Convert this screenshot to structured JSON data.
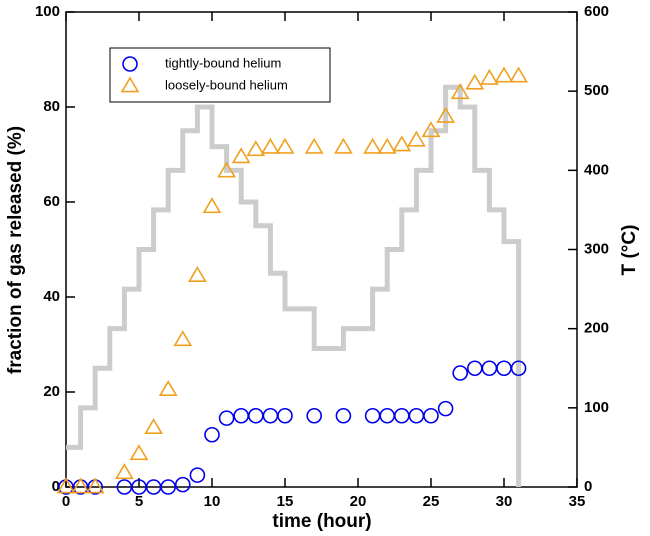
{
  "chart_data": {
    "type": "scatter",
    "xlabel": "time  (hour)",
    "ylabel": "fraction of gas released (%)",
    "y2label": "T  (°C)",
    "xlim": [
      0,
      35
    ],
    "xticks": [
      0,
      5,
      10,
      15,
      20,
      25,
      30,
      35
    ],
    "ylim": [
      0,
      100
    ],
    "yticks": [
      0,
      20,
      40,
      60,
      80,
      100
    ],
    "y2lim": [
      0,
      600
    ],
    "y2ticks": [
      0,
      100,
      200,
      300,
      400,
      500,
      600
    ],
    "legend": "upper left",
    "series": [
      {
        "color": "#cccccc",
        "axis": "y2",
        "kind": "line",
        "x": [
          0,
          1,
          1,
          2,
          2,
          3,
          3,
          4,
          4,
          5,
          5,
          6,
          6,
          7,
          7,
          8,
          8,
          9,
          9,
          10,
          10,
          11,
          11,
          12,
          12,
          13,
          13,
          14,
          14,
          15,
          15,
          17,
          17,
          19,
          19,
          21,
          21,
          22,
          22,
          23,
          23,
          24,
          24,
          25,
          25,
          26,
          26,
          27,
          27,
          28,
          28,
          29,
          29,
          30,
          30,
          31,
          31
        ],
        "values": [
          50,
          50,
          100,
          100,
          150,
          150,
          200,
          200,
          250,
          250,
          300,
          300,
          350,
          350,
          400,
          400,
          450,
          450,
          480,
          480,
          430,
          430,
          400,
          400,
          360,
          360,
          330,
          330,
          270,
          270,
          225,
          225,
          175,
          175,
          200,
          200,
          250,
          250,
          300,
          300,
          350,
          350,
          400,
          400,
          450,
          450,
          505,
          505,
          480,
          480,
          400,
          400,
          350,
          350,
          310,
          310,
          0
        ]
      },
      {
        "name": "tightly-bound helium",
        "color": "#0000ee",
        "marker": "circle",
        "x": [
          0,
          1,
          2,
          4,
          5,
          6,
          7,
          8,
          9,
          10,
          11,
          12,
          13,
          14,
          15,
          17,
          19,
          21,
          22,
          23,
          24,
          25,
          26,
          27,
          28,
          29,
          30,
          31
        ],
        "values": [
          0,
          0,
          0,
          0,
          0,
          0,
          0,
          0.5,
          2.5,
          11,
          14.5,
          15,
          15,
          15,
          15,
          15,
          15,
          15,
          15,
          15,
          15,
          15,
          16.5,
          24,
          25,
          25,
          25,
          25
        ]
      },
      {
        "name": "loosely-bound helium",
        "color": "#f0a020",
        "marker": "triangle",
        "x": [
          0,
          1,
          2,
          4,
          5,
          6,
          7,
          8,
          9,
          10,
          11,
          12,
          13,
          14,
          15,
          17,
          19,
          21,
          22,
          23,
          24,
          25,
          26,
          27,
          28,
          29,
          30,
          31
        ],
        "values": [
          0,
          0,
          0,
          3,
          7,
          12.5,
          20.5,
          31,
          44.5,
          59,
          66.5,
          69.5,
          71,
          71.5,
          71.5,
          71.5,
          71.5,
          71.5,
          71.5,
          72,
          73,
          75,
          78,
          83,
          85,
          86,
          86.5,
          86.5
        ]
      }
    ]
  }
}
